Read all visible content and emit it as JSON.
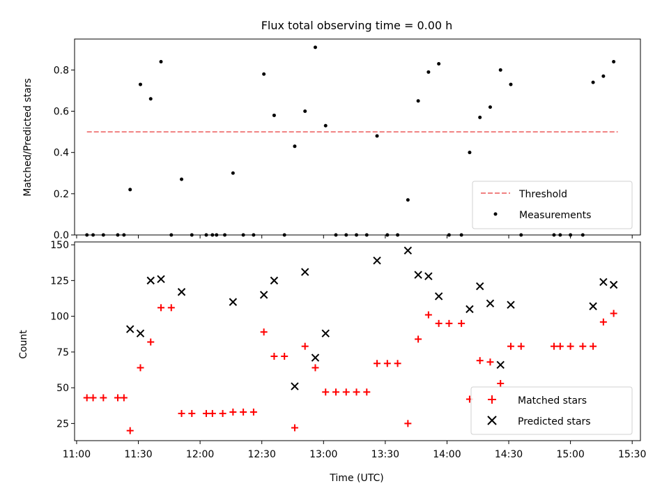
{
  "title": "Flux total observing time = 0.00 h",
  "chart_data": [
    {
      "type": "scatter",
      "title": "Flux total observing time = 0.00 h",
      "xlabel": "",
      "ylabel": "Matched/Predicted stars",
      "xlim": [
        "10:59",
        "15:34"
      ],
      "ylim": [
        0,
        0.95
      ],
      "yticks": [
        0.0,
        0.2,
        0.4,
        0.6,
        0.8
      ],
      "ytick_labels": [
        "0.0",
        "0.2",
        "0.4",
        "0.6",
        "0.8"
      ],
      "grid": false,
      "legend_position": "lower-right",
      "threshold": {
        "name": "Threshold",
        "value": 0.5,
        "x_start": "11:05",
        "x_end": "15:23",
        "color": "#f08080",
        "style": "dashed"
      },
      "series": [
        {
          "name": "Measurements",
          "color": "#000000",
          "marker": "dot",
          "points": [
            {
              "x": "11:05",
              "y": 0
            },
            {
              "x": "11:08",
              "y": 0
            },
            {
              "x": "11:13",
              "y": 0
            },
            {
              "x": "11:20",
              "y": 0
            },
            {
              "x": "11:23",
              "y": 0
            },
            {
              "x": "11:26",
              "y": 0.22
            },
            {
              "x": "11:31",
              "y": 0.73
            },
            {
              "x": "11:36",
              "y": 0.66
            },
            {
              "x": "11:41",
              "y": 0.84
            },
            {
              "x": "11:46",
              "y": 0
            },
            {
              "x": "11:51",
              "y": 0.27
            },
            {
              "x": "11:56",
              "y": 0
            },
            {
              "x": "12:03",
              "y": 0
            },
            {
              "x": "12:06",
              "y": 0
            },
            {
              "x": "12:08",
              "y": 0
            },
            {
              "x": "12:12",
              "y": 0
            },
            {
              "x": "12:16",
              "y": 0.3
            },
            {
              "x": "12:21",
              "y": 0
            },
            {
              "x": "12:26",
              "y": 0
            },
            {
              "x": "12:31",
              "y": 0.78
            },
            {
              "x": "12:36",
              "y": 0.58
            },
            {
              "x": "12:41",
              "y": 0
            },
            {
              "x": "12:46",
              "y": 0.43
            },
            {
              "x": "12:51",
              "y": 0.6
            },
            {
              "x": "12:56",
              "y": 0.91
            },
            {
              "x": "13:01",
              "y": 0.53
            },
            {
              "x": "13:06",
              "y": 0
            },
            {
              "x": "13:11",
              "y": 0
            },
            {
              "x": "13:16",
              "y": 0
            },
            {
              "x": "13:21",
              "y": 0
            },
            {
              "x": "13:26",
              "y": 0.48
            },
            {
              "x": "13:31",
              "y": 0
            },
            {
              "x": "13:36",
              "y": 0
            },
            {
              "x": "13:41",
              "y": 0.17
            },
            {
              "x": "13:46",
              "y": 0.65
            },
            {
              "x": "13:51",
              "y": 0.79
            },
            {
              "x": "13:56",
              "y": 0.83
            },
            {
              "x": "14:01",
              "y": 0
            },
            {
              "x": "14:07",
              "y": 0
            },
            {
              "x": "14:11",
              "y": 0.4
            },
            {
              "x": "14:16",
              "y": 0.57
            },
            {
              "x": "14:21",
              "y": 0.62
            },
            {
              "x": "14:26",
              "y": 0.8
            },
            {
              "x": "14:31",
              "y": 0.73
            },
            {
              "x": "14:36",
              "y": 0
            },
            {
              "x": "14:52",
              "y": 0
            },
            {
              "x": "14:55",
              "y": 0
            },
            {
              "x": "15:00",
              "y": 0
            },
            {
              "x": "15:06",
              "y": 0
            },
            {
              "x": "15:11",
              "y": 0.74
            },
            {
              "x": "15:16",
              "y": 0.77
            },
            {
              "x": "15:21",
              "y": 0.84
            }
          ]
        }
      ]
    },
    {
      "type": "scatter",
      "title": "",
      "xlabel": "Time (UTC)",
      "ylabel": "Count",
      "xlim": [
        "10:59",
        "15:34"
      ],
      "ylim": [
        13,
        152
      ],
      "xticks": [
        "11:00",
        "11:30",
        "12:00",
        "12:30",
        "13:00",
        "13:30",
        "14:00",
        "14:30",
        "15:00",
        "15:30"
      ],
      "yticks": [
        25,
        50,
        75,
        100,
        125,
        150
      ],
      "ytick_labels": [
        "25",
        "50",
        "75",
        "100",
        "125",
        "150"
      ],
      "grid": false,
      "legend_position": "lower-right",
      "series": [
        {
          "name": "Matched stars",
          "color": "#ff0000",
          "marker": "plus",
          "points": [
            {
              "x": "11:05",
              "y": 43
            },
            {
              "x": "11:08",
              "y": 43
            },
            {
              "x": "11:13",
              "y": 43
            },
            {
              "x": "11:20",
              "y": 43
            },
            {
              "x": "11:23",
              "y": 43
            },
            {
              "x": "11:26",
              "y": 20
            },
            {
              "x": "11:31",
              "y": 64
            },
            {
              "x": "11:36",
              "y": 82
            },
            {
              "x": "11:41",
              "y": 106
            },
            {
              "x": "11:46",
              "y": 106
            },
            {
              "x": "11:51",
              "y": 32
            },
            {
              "x": "11:56",
              "y": 32
            },
            {
              "x": "12:03",
              "y": 32
            },
            {
              "x": "12:06",
              "y": 32
            },
            {
              "x": "12:11",
              "y": 32
            },
            {
              "x": "12:16",
              "y": 33
            },
            {
              "x": "12:21",
              "y": 33
            },
            {
              "x": "12:26",
              "y": 33
            },
            {
              "x": "12:31",
              "y": 89
            },
            {
              "x": "12:36",
              "y": 72
            },
            {
              "x": "12:41",
              "y": 72
            },
            {
              "x": "12:46",
              "y": 22
            },
            {
              "x": "12:51",
              "y": 79
            },
            {
              "x": "12:56",
              "y": 64
            },
            {
              "x": "13:01",
              "y": 47
            },
            {
              "x": "13:06",
              "y": 47
            },
            {
              "x": "13:11",
              "y": 47
            },
            {
              "x": "13:16",
              "y": 47
            },
            {
              "x": "13:21",
              "y": 47
            },
            {
              "x": "13:26",
              "y": 67
            },
            {
              "x": "13:31",
              "y": 67
            },
            {
              "x": "13:36",
              "y": 67
            },
            {
              "x": "13:41",
              "y": 25
            },
            {
              "x": "13:46",
              "y": 84
            },
            {
              "x": "13:51",
              "y": 101
            },
            {
              "x": "13:56",
              "y": 95
            },
            {
              "x": "14:01",
              "y": 95
            },
            {
              "x": "14:07",
              "y": 95
            },
            {
              "x": "14:11",
              "y": 42
            },
            {
              "x": "14:16",
              "y": 69
            },
            {
              "x": "14:21",
              "y": 68
            },
            {
              "x": "14:26",
              "y": 53
            },
            {
              "x": "14:31",
              "y": 79
            },
            {
              "x": "14:36",
              "y": 79
            },
            {
              "x": "14:52",
              "y": 79
            },
            {
              "x": "14:55",
              "y": 79
            },
            {
              "x": "15:00",
              "y": 79
            },
            {
              "x": "15:06",
              "y": 79
            },
            {
              "x": "15:11",
              "y": 79
            },
            {
              "x": "15:16",
              "y": 96
            },
            {
              "x": "15:21",
              "y": 102
            }
          ]
        },
        {
          "name": "Predicted stars",
          "color": "#000000",
          "marker": "x",
          "points": [
            {
              "x": "11:26",
              "y": 91
            },
            {
              "x": "11:31",
              "y": 88
            },
            {
              "x": "11:36",
              "y": 125
            },
            {
              "x": "11:41",
              "y": 126
            },
            {
              "x": "11:51",
              "y": 117
            },
            {
              "x": "12:16",
              "y": 110
            },
            {
              "x": "12:31",
              "y": 115
            },
            {
              "x": "12:36",
              "y": 125
            },
            {
              "x": "12:46",
              "y": 51
            },
            {
              "x": "12:51",
              "y": 131
            },
            {
              "x": "12:56",
              "y": 71
            },
            {
              "x": "13:01",
              "y": 88
            },
            {
              "x": "13:26",
              "y": 139
            },
            {
              "x": "13:41",
              "y": 146
            },
            {
              "x": "13:46",
              "y": 129
            },
            {
              "x": "13:51",
              "y": 128
            },
            {
              "x": "13:56",
              "y": 114
            },
            {
              "x": "14:11",
              "y": 105
            },
            {
              "x": "14:16",
              "y": 121
            },
            {
              "x": "14:21",
              "y": 109
            },
            {
              "x": "14:26",
              "y": 66
            },
            {
              "x": "14:31",
              "y": 108
            },
            {
              "x": "15:11",
              "y": 107
            },
            {
              "x": "15:16",
              "y": 124
            },
            {
              "x": "15:21",
              "y": 122
            }
          ]
        }
      ]
    }
  ]
}
